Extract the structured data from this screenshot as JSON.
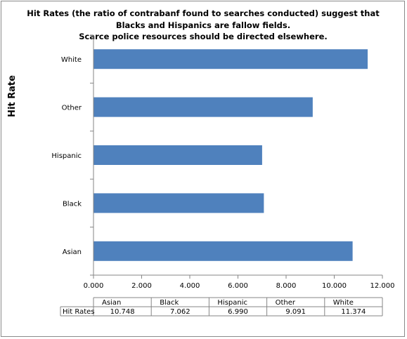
{
  "chart_data": {
    "type": "bar",
    "orientation": "horizontal",
    "title_lines": [
      "Hit Rates (the ratio of contrabanf found to searches conducted) suggest that",
      "Blacks and Hispanics are fallow fields.",
      "Scarce police resources should be directed elsewhere."
    ],
    "ylabel": "Hit Rate",
    "xlabel": "",
    "categories": [
      "Asian",
      "Black",
      "Hispanic",
      "Other",
      "White"
    ],
    "series": [
      {
        "name": "Hit Rates",
        "values": [
          10.748,
          7.062,
          6.99,
          9.091,
          11.374
        ],
        "value_labels": [
          "10.748",
          "7.062",
          "6.990",
          "9.091",
          "11.374"
        ]
      }
    ],
    "xlim": [
      0,
      12
    ],
    "x_ticks": [
      "0.000",
      "2.000",
      "4.000",
      "6.000",
      "8.000",
      "10.000",
      "12.000"
    ],
    "grid": false,
    "legend": "none",
    "bar_color": "#4f81bd",
    "data_table": true
  }
}
